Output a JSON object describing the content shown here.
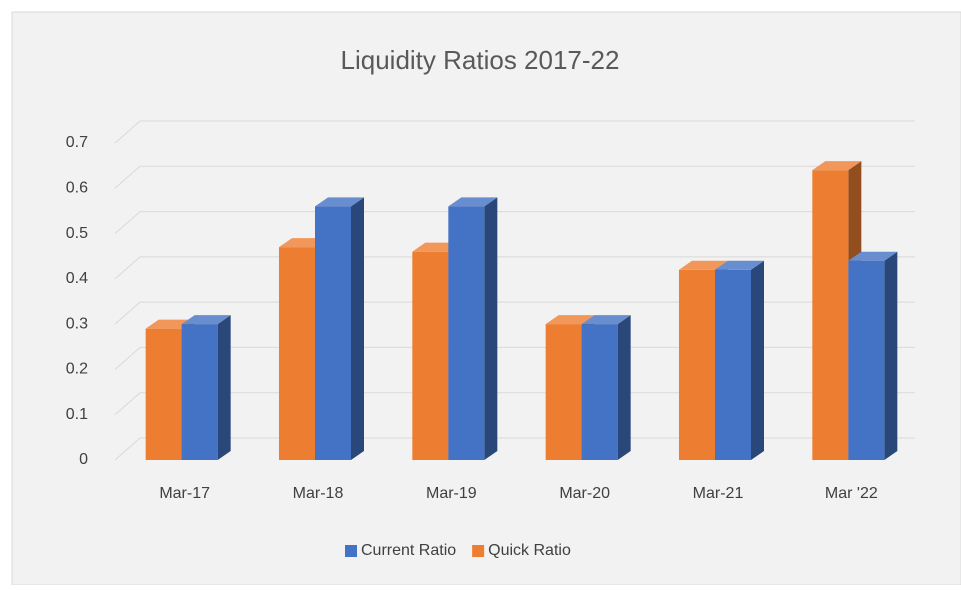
{
  "chart_data": {
    "type": "bar3d",
    "title": "Liquidity Ratios 2017-22",
    "categories": [
      "Mar-17",
      "Mar-18",
      "Mar-19",
      "Mar-20",
      "Mar-21",
      "Mar '22"
    ],
    "series": [
      {
        "name": "Current Ratio",
        "color": "#4472c4",
        "values": [
          0.3,
          0.56,
          0.56,
          0.3,
          0.42,
          0.44
        ]
      },
      {
        "name": "Quick Ratio",
        "color": "#ed7d31",
        "values": [
          0.29,
          0.47,
          0.46,
          0.3,
          0.42,
          0.64
        ]
      }
    ],
    "ylim": [
      0,
      0.7
    ],
    "yticks": [
      0,
      0.1,
      0.2,
      0.3,
      0.4,
      0.5,
      0.6,
      0.7
    ],
    "grid": true,
    "legend": "bottom"
  }
}
